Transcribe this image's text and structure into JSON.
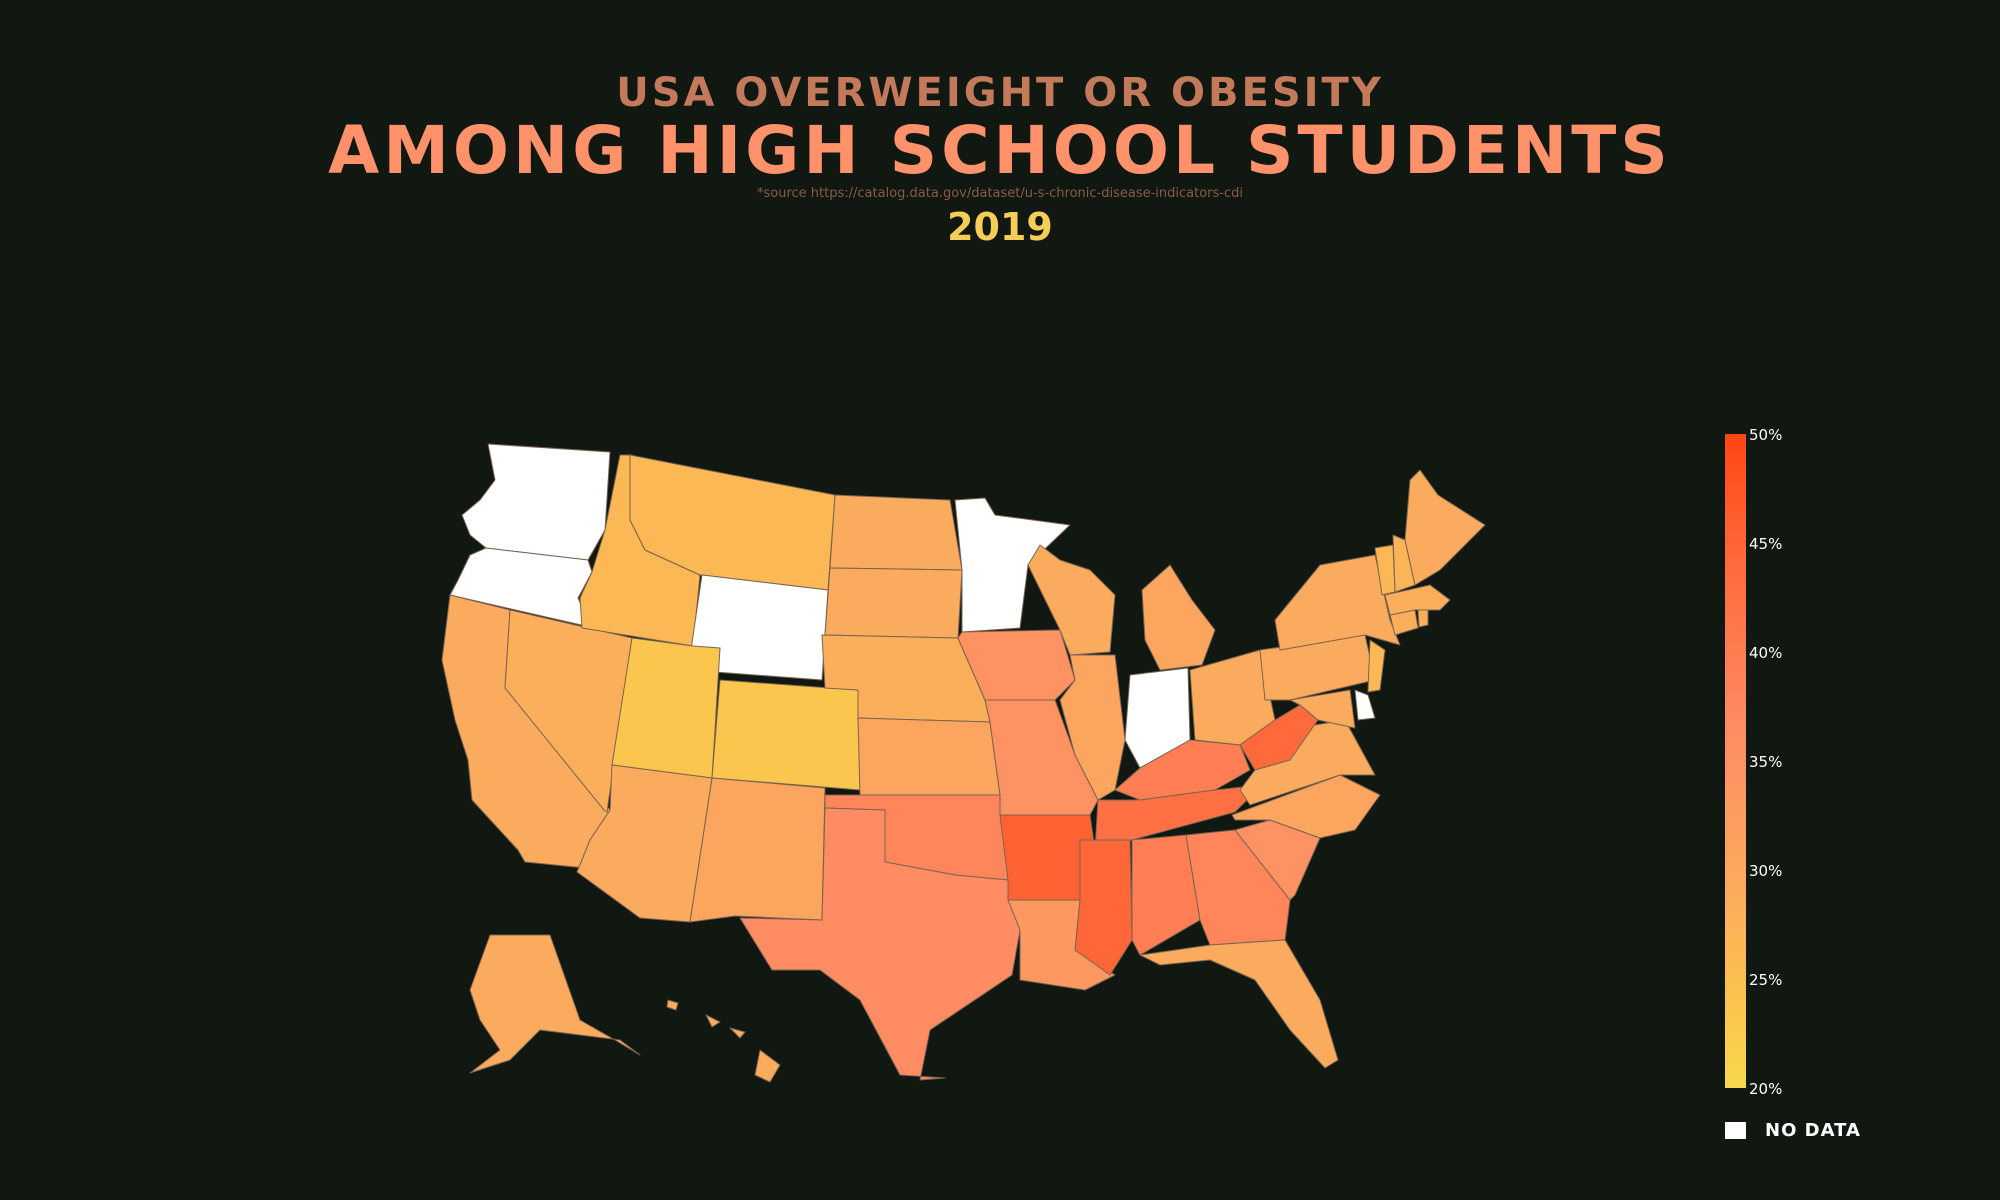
{
  "header": {
    "supertitle": "USA OVERWEIGHT OR OBESITY",
    "title": "AMONG HIGH SCHOOL STUDENTS",
    "source": "*source https://catalog.data.gov/dataset/u-s-chronic-disease-indicators-cdi",
    "year": "2019"
  },
  "legend": {
    "ticks": [
      "50%",
      "45%",
      "40%",
      "35%",
      "30%",
      "25%",
      "20%"
    ],
    "no_data_label": "NO DATA",
    "no_data_color": "#ffffff",
    "scale_colors": [
      "#f6d94c",
      "#fbc14e",
      "#fbab5d",
      "#ff8c63",
      "#ff6a3d",
      "#ff4612"
    ]
  },
  "chart_data": {
    "type": "choropleth",
    "value_range": [
      20,
      50
    ],
    "unit": "%",
    "states": [
      {
        "state": "WA",
        "value": null
      },
      {
        "state": "OR",
        "value": null
      },
      {
        "state": "CA",
        "value": 30
      },
      {
        "state": "NV",
        "value": 29
      },
      {
        "state": "ID",
        "value": 27
      },
      {
        "state": "MT",
        "value": 27
      },
      {
        "state": "WY",
        "value": null
      },
      {
        "state": "UT",
        "value": 24
      },
      {
        "state": "CO",
        "value": 24
      },
      {
        "state": "AZ",
        "value": 30
      },
      {
        "state": "NM",
        "value": 31
      },
      {
        "state": "ND",
        "value": 30
      },
      {
        "state": "SD",
        "value": 30
      },
      {
        "state": "NE",
        "value": 29
      },
      {
        "state": "KS",
        "value": 31
      },
      {
        "state": "OK",
        "value": 36
      },
      {
        "state": "TX",
        "value": 35
      },
      {
        "state": "MN",
        "value": null
      },
      {
        "state": "IA",
        "value": 34
      },
      {
        "state": "MO",
        "value": 34
      },
      {
        "state": "AR",
        "value": 42
      },
      {
        "state": "LA",
        "value": 33
      },
      {
        "state": "WI",
        "value": 30
      },
      {
        "state": "IL",
        "value": 31
      },
      {
        "state": "MI",
        "value": 31
      },
      {
        "state": "IN",
        "value": null
      },
      {
        "state": "OH",
        "value": 30
      },
      {
        "state": "KY",
        "value": 37
      },
      {
        "state": "TN",
        "value": 39
      },
      {
        "state": "MS",
        "value": 41
      },
      {
        "state": "AL",
        "value": 37
      },
      {
        "state": "GA",
        "value": 36
      },
      {
        "state": "FL",
        "value": 30
      },
      {
        "state": "SC",
        "value": 34
      },
      {
        "state": "NC",
        "value": 31
      },
      {
        "state": "VA",
        "value": 30
      },
      {
        "state": "WV",
        "value": 40
      },
      {
        "state": "MD",
        "value": 30
      },
      {
        "state": "DE",
        "value": null
      },
      {
        "state": "PA",
        "value": 30
      },
      {
        "state": "NJ",
        "value": 27
      },
      {
        "state": "NY",
        "value": 30
      },
      {
        "state": "CT",
        "value": 29
      },
      {
        "state": "RI",
        "value": 29
      },
      {
        "state": "MA",
        "value": 29
      },
      {
        "state": "VT",
        "value": 27
      },
      {
        "state": "NH",
        "value": 28
      },
      {
        "state": "ME",
        "value": 30
      },
      {
        "state": "AK",
        "value": 30
      },
      {
        "state": "HI",
        "value": 30
      }
    ]
  }
}
